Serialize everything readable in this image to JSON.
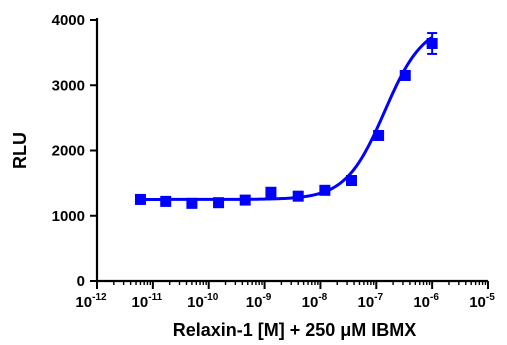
{
  "chart_data": {
    "type": "scatter",
    "xscale": "log",
    "xlabel": "Relaxin-1 [M] + 250 μM IBMX",
    "ylabel": "RLU",
    "xlim": [
      1e-12,
      1e-05
    ],
    "ylim": [
      0,
      4000
    ],
    "x_ticks": [
      {
        "base": "10",
        "exp": "-12"
      },
      {
        "base": "10",
        "exp": "-11"
      },
      {
        "base": "10",
        "exp": "-10"
      },
      {
        "base": "10",
        "exp": "-9"
      },
      {
        "base": "10",
        "exp": "-8"
      },
      {
        "base": "10",
        "exp": "-7"
      },
      {
        "base": "10",
        "exp": "-6"
      },
      {
        "base": "10",
        "exp": "-5"
      }
    ],
    "y_ticks": [
      "0",
      "1000",
      "2000",
      "3000",
      "4000"
    ],
    "grid": false,
    "series": [
      {
        "x": [
          6e-12,
          1.7e-11,
          5e-11,
          1.5e-10,
          4.5e-10,
          1.3e-09,
          4e-09,
          1.2e-08,
          3.6e-08,
          1.1e-07,
          3.3e-07,
          1e-06
        ],
        "y": [
          1250,
          1220,
          1190,
          1200,
          1240,
          1360,
          1300,
          1390,
          1540,
          2230,
          3150,
          3640
        ],
        "error": [
          0,
          0,
          0,
          0,
          0,
          0,
          0,
          0,
          0,
          0,
          0,
          160
        ],
        "color": "#0000ff",
        "marker": "square"
      }
    ],
    "fit": {
      "type": "sigmoidal dose-response",
      "bottom": 1250,
      "top": 3950,
      "logEC50": -6.85,
      "hill": 1.25,
      "x_from": 6e-12,
      "x_to": 1e-06,
      "color": "#0000ff"
    }
  }
}
